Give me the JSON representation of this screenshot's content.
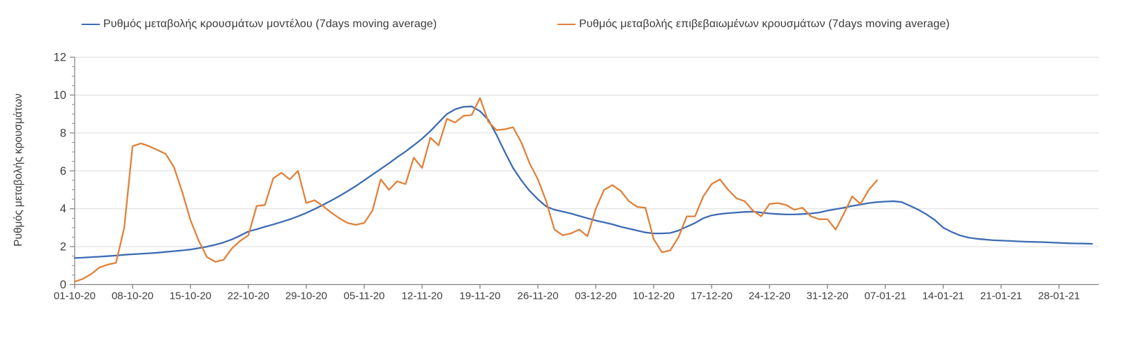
{
  "chart_data": {
    "type": "line",
    "title": "",
    "xlabel": "",
    "ylabel": "Ρυθμός μεταβολής κρουσμάτων",
    "ylim": [
      0,
      12
    ],
    "y_ticks": [
      0,
      2,
      4,
      6,
      8,
      10,
      12
    ],
    "y_minor_tick_step": 0.5,
    "grid": "horizontal",
    "legend_position": "top",
    "x_start_date": "01-10-20",
    "x_tick_interval_days": 7,
    "x_tick_labels": [
      "01-10-20",
      "08-10-20",
      "15-10-20",
      "22-10-20",
      "29-10-20",
      "05-11-20",
      "12-11-20",
      "19-11-20",
      "26-11-20",
      "03-12-20",
      "10-12-20",
      "17-12-20",
      "24-12-20",
      "31-12-20",
      "07-01-21",
      "14-01-21",
      "21-01-21",
      "28-01-21"
    ],
    "series": [
      {
        "name": "Ρυθμός μεταβολής κρουσμάτων μοντέλου (7days moving average)",
        "color": "#3d6bb3",
        "start_day": 0,
        "values": [
          1.4,
          1.42,
          1.45,
          1.47,
          1.5,
          1.53,
          1.57,
          1.6,
          1.62,
          1.65,
          1.68,
          1.72,
          1.76,
          1.8,
          1.85,
          1.92,
          2.0,
          2.1,
          2.22,
          2.38,
          2.58,
          2.8,
          2.92,
          3.05,
          3.17,
          3.3,
          3.44,
          3.6,
          3.78,
          3.98,
          4.2,
          4.43,
          4.67,
          4.93,
          5.2,
          5.5,
          5.8,
          6.1,
          6.4,
          6.72,
          7.02,
          7.35,
          7.7,
          8.1,
          8.55,
          9.0,
          9.25,
          9.38,
          9.4,
          9.15,
          8.7,
          7.9,
          7.0,
          6.15,
          5.5,
          4.95,
          4.5,
          4.12,
          3.95,
          3.85,
          3.75,
          3.62,
          3.5,
          3.38,
          3.28,
          3.18,
          3.05,
          2.95,
          2.85,
          2.75,
          2.7,
          2.7,
          2.72,
          2.85,
          3.05,
          3.25,
          3.5,
          3.65,
          3.72,
          3.77,
          3.8,
          3.83,
          3.85,
          3.8,
          3.75,
          3.72,
          3.7,
          3.7,
          3.72,
          3.75,
          3.8,
          3.9,
          3.98,
          4.05,
          4.15,
          4.22,
          4.3,
          4.35,
          4.38,
          4.4,
          4.35,
          4.15,
          3.95,
          3.7,
          3.4,
          3.0,
          2.78,
          2.6,
          2.48,
          2.42,
          2.38,
          2.34,
          2.32,
          2.3,
          2.28,
          2.26,
          2.25,
          2.24,
          2.22,
          2.2,
          2.18,
          2.17,
          2.16,
          2.15
        ]
      },
      {
        "name": "Ρυθμός μεταβολής επιβεβαιωμένων κρουσμάτων (7days moving average)",
        "color": "#e0813a",
        "start_day": 0,
        "values": [
          0.15,
          0.3,
          0.55,
          0.9,
          1.05,
          1.15,
          3.0,
          7.3,
          7.45,
          7.3,
          7.1,
          6.9,
          6.2,
          4.9,
          3.4,
          2.3,
          1.45,
          1.2,
          1.3,
          1.9,
          2.3,
          2.6,
          4.15,
          4.2,
          5.6,
          5.9,
          5.55,
          6.0,
          4.3,
          4.45,
          4.15,
          3.8,
          3.5,
          3.25,
          3.15,
          3.25,
          3.9,
          5.55,
          5.0,
          5.45,
          5.3,
          6.7,
          6.15,
          7.75,
          7.35,
          8.75,
          8.55,
          8.9,
          8.95,
          9.85,
          8.6,
          8.15,
          8.2,
          8.3,
          7.5,
          6.4,
          5.55,
          4.4,
          2.9,
          2.6,
          2.7,
          2.9,
          2.55,
          4.0,
          5.0,
          5.25,
          4.95,
          4.4,
          4.1,
          4.05,
          2.4,
          1.7,
          1.8,
          2.5,
          3.6,
          3.6,
          4.65,
          5.3,
          5.55,
          5.0,
          4.55,
          4.4,
          3.9,
          3.6,
          4.25,
          4.3,
          4.2,
          3.95,
          4.05,
          3.6,
          3.45,
          3.45,
          2.9,
          3.75,
          4.65,
          4.25,
          5.0,
          5.5
        ]
      }
    ],
    "colors": {
      "gridline": "#dbdbdb",
      "axis_line": "#8a8a8a",
      "tick_label": "#3f3f3f"
    }
  }
}
